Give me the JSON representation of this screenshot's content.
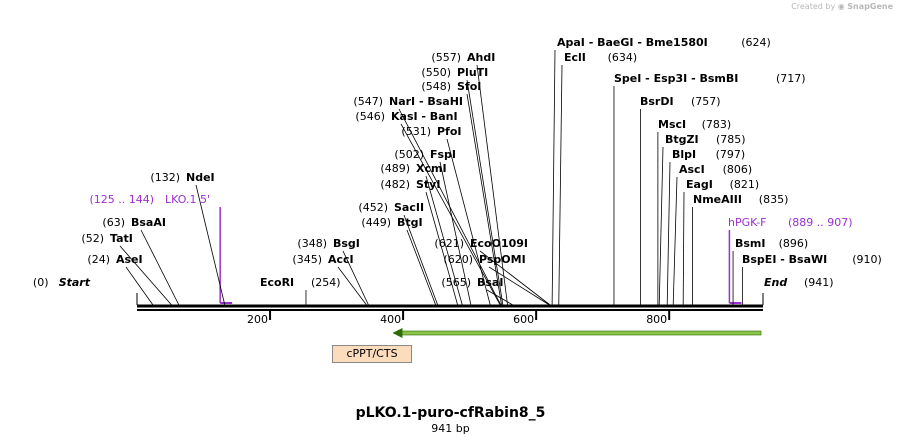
{
  "credit": {
    "prefix": "Created by",
    "brand": "SnapGene"
  },
  "sequence": {
    "name": "pLKO.1-puro-cfRabin8_5",
    "length_label": "941 bp",
    "length": 941
  },
  "colors": {
    "site": "#000000",
    "primer": "#9b30d0",
    "arrow": "#8bc34a",
    "arrow_edge": "#2e6b00",
    "feature_fill": "#fbdcbd"
  },
  "ruler": {
    "ticks": [
      200,
      400,
      600,
      800
    ]
  },
  "features": [
    {
      "name": "cPPT/CTS"
    }
  ],
  "arrow": {
    "start": 384,
    "end": 941,
    "direction": "reverse"
  },
  "labels": [
    {
      "pos": 0,
      "name": "Start",
      "coord": "(0)",
      "kind": "end-start"
    },
    {
      "pos": 24,
      "name": "AseI",
      "coord": "(24)",
      "kind": "site"
    },
    {
      "pos": 52,
      "name": "TatI",
      "coord": "(52)",
      "kind": "site"
    },
    {
      "pos": 63,
      "name": "BsaAI",
      "coord": "(63)",
      "kind": "site"
    },
    {
      "pos": 125,
      "name": "LKO.1 5'",
      "coord": "(125 .. 144)",
      "kind": "primer-left"
    },
    {
      "pos": 132,
      "name": "NdeI",
      "coord": "(132)",
      "kind": "site"
    },
    {
      "pos": 254,
      "name": "EcoRI",
      "coord": "(254)",
      "kind": "site-right"
    },
    {
      "pos": 345,
      "name": "AccI",
      "coord": "(345)",
      "kind": "site"
    },
    {
      "pos": 348,
      "name": "BsgI",
      "coord": "(348)",
      "kind": "site"
    },
    {
      "pos": 449,
      "name": "BtgI",
      "coord": "(449)",
      "kind": "site"
    },
    {
      "pos": 452,
      "name": "SacII",
      "coord": "(452)",
      "kind": "site"
    },
    {
      "pos": 482,
      "name": "StyI",
      "coord": "(482)",
      "kind": "site"
    },
    {
      "pos": 489,
      "name": "XcmI",
      "coord": "(489)",
      "kind": "site"
    },
    {
      "pos": 502,
      "name": "FspI",
      "coord": "(502)",
      "kind": "site"
    },
    {
      "pos": 531,
      "name": "PfoI",
      "coord": "(531)",
      "kind": "site"
    },
    {
      "pos": 546,
      "name": "KasI  -  BanI",
      "coord": "(546)",
      "kind": "site"
    },
    {
      "pos": 547,
      "name": "NarI  -  BsaHI",
      "coord": "(547)",
      "kind": "site"
    },
    {
      "pos": 548,
      "name": "SfoI",
      "coord": "(548)",
      "kind": "site"
    },
    {
      "pos": 550,
      "name": "PluTI",
      "coord": "(550)",
      "kind": "site"
    },
    {
      "pos": 557,
      "name": "AhdI",
      "coord": "(557)",
      "kind": "site"
    },
    {
      "pos": 565,
      "name": "BsaI",
      "coord": "(565)",
      "kind": "site"
    },
    {
      "pos": 620,
      "name": "PspOMI",
      "coord": "(620)",
      "kind": "site"
    },
    {
      "pos": 621,
      "name": "EcoO109I",
      "coord": "(621)",
      "kind": "site"
    },
    {
      "pos": 624,
      "name": "ApaI  -  BaeGI  -  Bme1580I",
      "coord": "(624)",
      "kind": "site-right"
    },
    {
      "pos": 634,
      "name": "EclI",
      "coord": "(634)",
      "kind": "site-right"
    },
    {
      "pos": 717,
      "name": "SpeI  -  Esp3I  -  BsmBI",
      "coord": "(717)",
      "kind": "site-right"
    },
    {
      "pos": 757,
      "name": "BsrDI",
      "coord": "(757)",
      "kind": "site-right"
    },
    {
      "pos": 783,
      "name": "MscI",
      "coord": "(783)",
      "kind": "site-right"
    },
    {
      "pos": 785,
      "name": "BtgZI",
      "coord": "(785)",
      "kind": "site-right"
    },
    {
      "pos": 797,
      "name": "BlpI",
      "coord": "(797)",
      "kind": "site-right"
    },
    {
      "pos": 806,
      "name": "AscI",
      "coord": "(806)",
      "kind": "site-right"
    },
    {
      "pos": 821,
      "name": "EagI",
      "coord": "(821)",
      "kind": "site-right"
    },
    {
      "pos": 835,
      "name": "NmeAIII",
      "coord": "(835)",
      "kind": "site-right"
    },
    {
      "pos": 889,
      "name": "hPGK-F",
      "coord": "(889 .. 907)",
      "kind": "primer-right"
    },
    {
      "pos": 896,
      "name": "BsmI",
      "coord": "(896)",
      "kind": "site-right"
    },
    {
      "pos": 910,
      "name": "BspEI  -  BsaWI",
      "coord": "(910)",
      "kind": "site-right"
    },
    {
      "pos": 941,
      "name": "End",
      "coord": "(941)",
      "kind": "end-end"
    }
  ]
}
